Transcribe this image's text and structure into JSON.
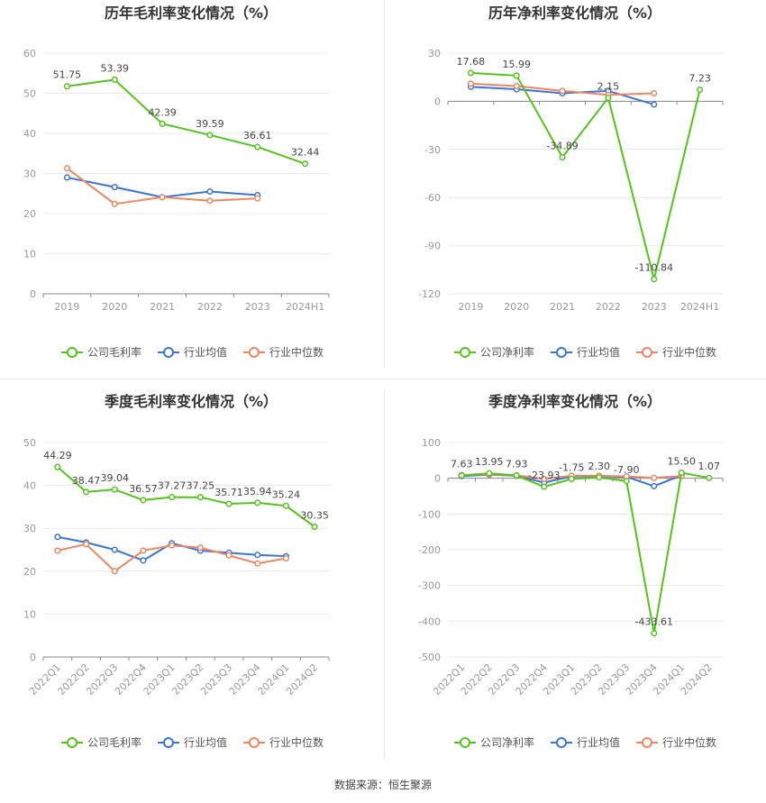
{
  "source_text": "数据来源：恒生聚源",
  "colors": {
    "company": "#52c41a",
    "industry_avg": "#3a74db",
    "industry_median": "#f08560",
    "grid": "#e9e9e9",
    "axis": "#999999",
    "text": "#555555",
    "title": "#333333"
  },
  "chart_data": [
    {
      "type": "line",
      "title": "历年毛利率变化情况（%）",
      "categories": [
        "2019",
        "2020",
        "2021",
        "2022",
        "2023",
        "2024H1"
      ],
      "ylim": [
        0,
        60
      ],
      "yticks": [
        0,
        10,
        20,
        30,
        40,
        50,
        60
      ],
      "grid": true,
      "legend_position": "bottom",
      "series": [
        {
          "name": "公司毛利率",
          "key": "company",
          "values": [
            51.75,
            53.39,
            42.39,
            39.59,
            36.61,
            32.44
          ],
          "labels": [
            "51.75",
            "53.39",
            "42.39",
            "39.59",
            "36.61",
            "32.44"
          ]
        },
        {
          "name": "行业均值",
          "key": "industry_avg",
          "values": [
            29.0,
            26.6,
            24.1,
            25.5,
            24.6,
            null
          ]
        },
        {
          "name": "行业中位数",
          "key": "industry_median",
          "values": [
            31.3,
            22.4,
            24.1,
            23.2,
            23.8,
            null
          ]
        }
      ]
    },
    {
      "type": "line",
      "title": "历年净利率变化情况（%）",
      "categories": [
        "2019",
        "2020",
        "2021",
        "2022",
        "2023",
        "2024H1"
      ],
      "ylim": [
        -120,
        30
      ],
      "yticks": [
        -120,
        -90,
        -60,
        -30,
        0,
        30
      ],
      "grid": true,
      "legend_position": "bottom",
      "series": [
        {
          "name": "公司净利率",
          "key": "company",
          "values": [
            17.68,
            15.99,
            -34.89,
            2.15,
            -110.84,
            7.23
          ],
          "labels": [
            "17.68",
            "15.99",
            "-34.89",
            "2.15",
            "-110.84",
            "7.23"
          ]
        },
        {
          "name": "行业均值",
          "key": "industry_avg",
          "values": [
            9.0,
            7.5,
            5.0,
            6.5,
            -2.0,
            null
          ]
        },
        {
          "name": "行业中位数",
          "key": "industry_median",
          "values": [
            11.0,
            9.5,
            6.5,
            4.0,
            5.0,
            null
          ]
        }
      ]
    },
    {
      "type": "line",
      "title": "季度毛利率变化情况（%）",
      "categories": [
        "2022Q1",
        "2022Q2",
        "2022Q3",
        "2022Q4",
        "2023Q1",
        "2023Q2",
        "2023Q3",
        "2023Q4",
        "2024Q1",
        "2024Q2"
      ],
      "ylim": [
        0,
        50
      ],
      "yticks": [
        0,
        10,
        20,
        30,
        40,
        50
      ],
      "grid": true,
      "legend_position": "bottom",
      "series": [
        {
          "name": "公司毛利率",
          "key": "company",
          "values": [
            44.29,
            38.47,
            39.04,
            36.57,
            37.27,
            37.25,
            35.71,
            35.94,
            35.24,
            30.35
          ],
          "labels": [
            "44.29",
            "38.47",
            "39.04",
            "36.57",
            "37.27",
            "37.25",
            "35.71",
            "35.94",
            "35.24",
            "30.35"
          ]
        },
        {
          "name": "行业均值",
          "key": "industry_avg",
          "values": [
            28.0,
            26.7,
            25.0,
            22.5,
            26.5,
            24.8,
            24.3,
            23.8,
            23.5,
            null
          ]
        },
        {
          "name": "行业中位数",
          "key": "industry_median",
          "values": [
            24.8,
            26.3,
            20.0,
            24.8,
            26.0,
            25.5,
            23.7,
            21.8,
            23.0,
            null
          ]
        }
      ]
    },
    {
      "type": "line",
      "title": "季度净利率变化情况（%）",
      "categories": [
        "2022Q1",
        "2022Q2",
        "2022Q3",
        "2022Q4",
        "2023Q1",
        "2023Q2",
        "2023Q3",
        "2023Q4",
        "2024Q1",
        "2024Q2"
      ],
      "ylim": [
        -500,
        100
      ],
      "yticks": [
        -500,
        -400,
        -300,
        -200,
        -100,
        0,
        100
      ],
      "grid": true,
      "legend_position": "bottom",
      "series": [
        {
          "name": "公司净利率",
          "key": "company",
          "values": [
            7.63,
            13.95,
            7.93,
            -23.93,
            -1.75,
            2.3,
            -7.9,
            -433.61,
            15.5,
            1.07
          ],
          "labels": [
            "7.63",
            "13.95",
            "7.93",
            "-23.93",
            "-1.75",
            "2.30",
            "-7.90",
            "-433.61",
            "15.50",
            "1.07"
          ]
        },
        {
          "name": "行业均值",
          "key": "industry_avg",
          "values": [
            6.0,
            10.0,
            7.0,
            -12.0,
            5.0,
            5.0,
            4.0,
            -22.0,
            8.0,
            null
          ]
        },
        {
          "name": "行业中位数",
          "key": "industry_median",
          "values": [
            9.0,
            11.0,
            8.0,
            -2.0,
            7.0,
            7.0,
            5.0,
            1.0,
            6.0,
            null
          ]
        }
      ]
    }
  ]
}
